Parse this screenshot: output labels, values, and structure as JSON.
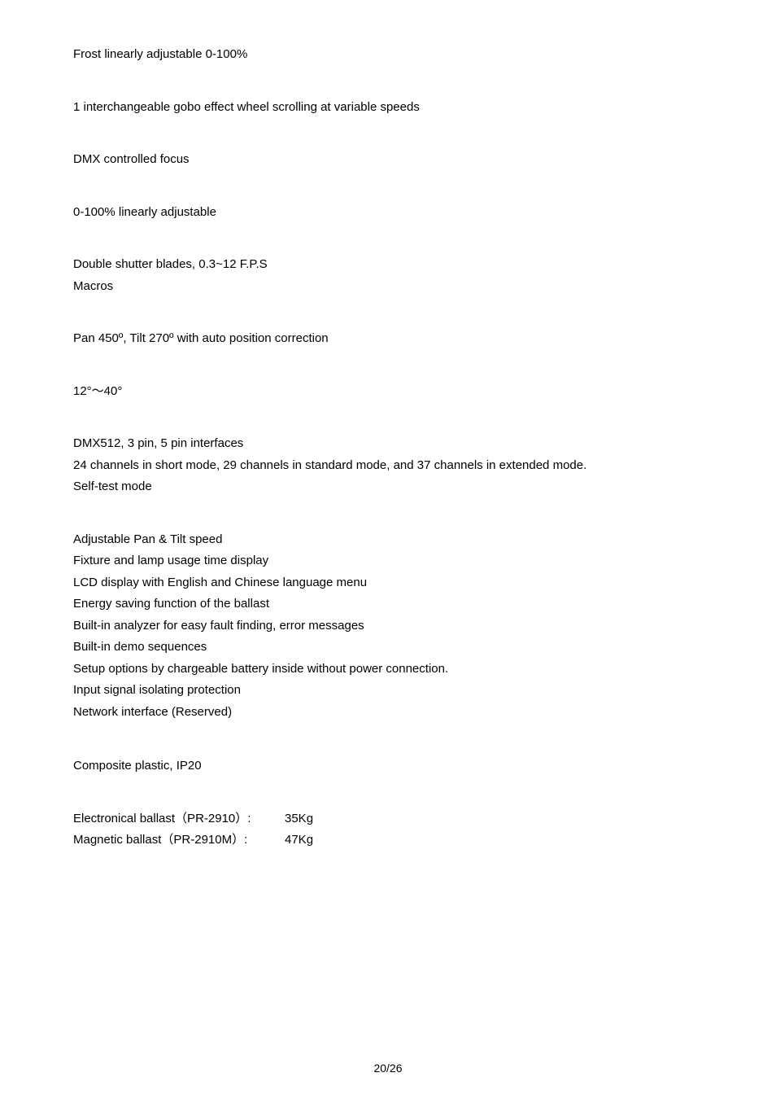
{
  "lines": {
    "frost": "Frost linearly adjustable 0-100%",
    "gobo": "1 interchangeable gobo effect wheel scrolling at variable speeds",
    "dmx_focus": "DMX controlled focus",
    "linearly": "0-100% linearly adjustable",
    "shutter": "Double shutter blades, 0.3~12 F.P.S",
    "macros": "Macros",
    "pan_tilt": "Pan 450º, Tilt 270º with auto position correction",
    "angle": "12°～40°",
    "dmx512": "DMX512, 3 pin, 5 pin interfaces",
    "channels": "24 channels in short mode, 29 channels in standard mode, and 37 channels in extended mode.",
    "selftest": "Self-test mode",
    "adj_pt": "Adjustable Pan & Tilt speed",
    "fixture": "Fixture and lamp usage time display",
    "lcd": "LCD display with English and Chinese language menu",
    "energy": "Energy saving function of the ballast",
    "analyzer": "Built-in analyzer for easy fault finding, error messages",
    "demo": "Built-in demo sequences",
    "setup": "Setup options by chargeable battery inside without power connection.",
    "input_sig": "Input signal isolating protection",
    "network": "Network interface (Reserved)",
    "composite": "Composite plastic, IP20"
  },
  "weights": {
    "electronic_label": "Electronical ballast（PR-2910）:",
    "electronic_val": "35Kg",
    "magnetic_label": "Magnetic ballast（PR-2910M）:",
    "magnetic_val": "47Kg"
  },
  "footer": "20/26"
}
